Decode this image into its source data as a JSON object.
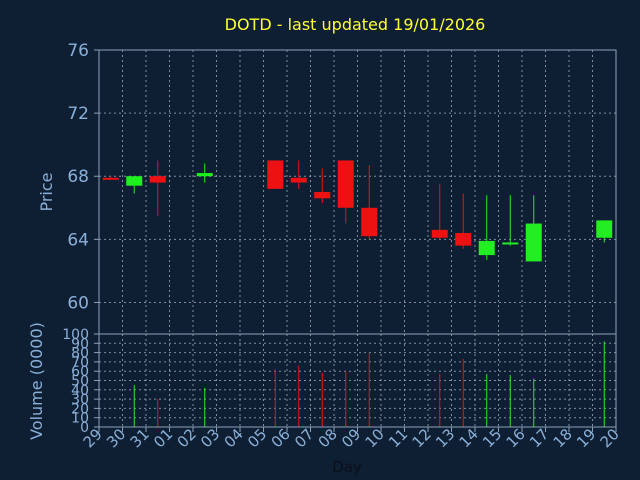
{
  "chart_data": {
    "type": "candlestick",
    "title": "DOTD - last updated 19/01/2026",
    "xlabel": "Day",
    "price_panel": {
      "ylabel": "Price",
      "ylim": [
        58,
        76
      ],
      "yticks": [
        "60",
        "64",
        "68",
        "72",
        "76"
      ],
      "ytick_values": [
        60,
        64,
        68,
        72,
        76
      ]
    },
    "volume_panel": {
      "ylabel": "Volume (0000)",
      "ylim": [
        0,
        100
      ],
      "yticks": [
        "0",
        "10",
        "20",
        "30",
        "40",
        "50",
        "60",
        "70",
        "80",
        "90",
        "100"
      ],
      "ytick_values": [
        0,
        10,
        20,
        30,
        40,
        50,
        60,
        70,
        80,
        90,
        100
      ]
    },
    "x_ticks": [
      "29",
      "30",
      "31",
      "01",
      "02",
      "03",
      "04",
      "05",
      "06",
      "07",
      "08",
      "09",
      "10",
      "11",
      "12",
      "13",
      "14",
      "15",
      "16",
      "17",
      "18",
      "19",
      "20"
    ],
    "grid": true,
    "colors": {
      "background": "#0f1f33",
      "axis": "#8aa0b8",
      "grid": "#b0bccb",
      "up": "#22ee22",
      "down": "#ee1111",
      "title": "#ffff33",
      "label": "#8ab0d8"
    },
    "candles": [
      {
        "day": "29",
        "open": 67.9,
        "close": 67.8,
        "high": 68.0,
        "low": 67.8
      },
      {
        "day": "30",
        "open": 67.4,
        "close": 68.0,
        "high": 68.0,
        "low": 66.9
      },
      {
        "day": "31",
        "open": 68.0,
        "close": 67.6,
        "high": 69.0,
        "low": 65.5
      },
      {
        "day": "02",
        "open": 68.0,
        "close": 68.2,
        "high": 68.8,
        "low": 67.6
      },
      {
        "day": "05",
        "open": 69.0,
        "close": 67.2,
        "high": 69.0,
        "low": 67.2
      },
      {
        "day": "06",
        "open": 67.9,
        "close": 67.6,
        "high": 69.0,
        "low": 67.2
      },
      {
        "day": "07",
        "open": 67.0,
        "close": 66.6,
        "high": 68.5,
        "low": 66.3
      },
      {
        "day": "08",
        "open": 69.0,
        "close": 66.0,
        "high": 69.0,
        "low": 65.0
      },
      {
        "day": "09",
        "open": 66.0,
        "close": 64.2,
        "high": 68.7,
        "low": 64.0
      },
      {
        "day": "12",
        "open": 64.6,
        "close": 64.1,
        "high": 67.5,
        "low": 64.0
      },
      {
        "day": "13",
        "open": 64.4,
        "close": 63.6,
        "high": 66.9,
        "low": 63.4
      },
      {
        "day": "14",
        "open": 63.0,
        "close": 63.9,
        "high": 66.8,
        "low": 62.7
      },
      {
        "day": "15",
        "open": 63.7,
        "close": 63.8,
        "high": 66.8,
        "low": 63.6
      },
      {
        "day": "16",
        "open": 62.6,
        "close": 65.0,
        "high": 66.8,
        "low": 62.6
      },
      {
        "day": "19",
        "open": 64.1,
        "close": 65.2,
        "high": 65.2,
        "low": 63.8
      }
    ],
    "volume": [
      {
        "day": "30",
        "value": 45
      },
      {
        "day": "31",
        "value": 30
      },
      {
        "day": "02",
        "value": 42
      },
      {
        "day": "05",
        "value": 62
      },
      {
        "day": "06",
        "value": 66
      },
      {
        "day": "07",
        "value": 58
      },
      {
        "day": "08",
        "value": 60
      },
      {
        "day": "09",
        "value": 80
      },
      {
        "day": "12",
        "value": 57
      },
      {
        "day": "13",
        "value": 73
      },
      {
        "day": "14",
        "value": 57
      },
      {
        "day": "15",
        "value": 56
      },
      {
        "day": "16",
        "value": 52
      },
      {
        "day": "19",
        "value": 92
      }
    ]
  }
}
